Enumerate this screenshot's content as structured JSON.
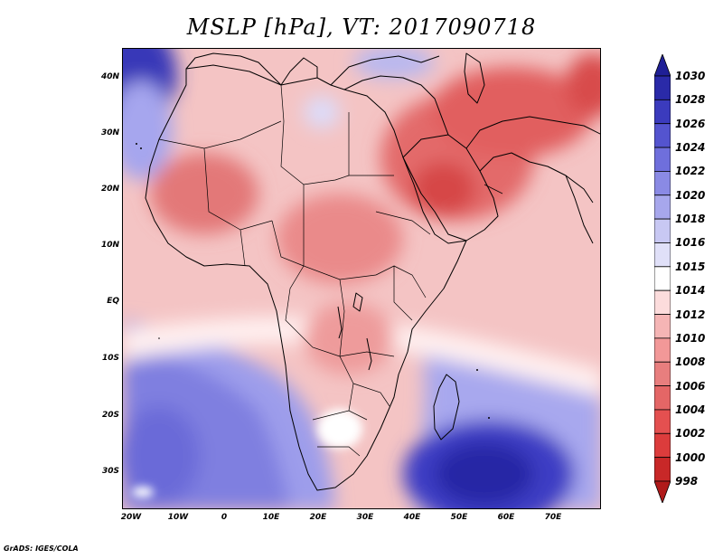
{
  "title": "MSLP [hPa], VT: 2017090718",
  "credit": "GrADS: IGES/COLA",
  "axes": {
    "x_labels": [
      "20W",
      "10W",
      "0",
      "10E",
      "20E",
      "30E",
      "40E",
      "50E",
      "60E",
      "70E"
    ],
    "y_labels": [
      "40N",
      "30N",
      "20N",
      "10N",
      "EQ",
      "10S",
      "20S",
      "30S"
    ]
  },
  "colorbar": {
    "levels": [
      "998",
      "1000",
      "1002",
      "1004",
      "1006",
      "1008",
      "1010",
      "1012",
      "1014",
      "1015",
      "1016",
      "1018",
      "1020",
      "1022",
      "1024",
      "1026",
      "1028",
      "1030"
    ],
    "colors": [
      "#b01a1a",
      "#c82828",
      "#dc3c3c",
      "#e45050",
      "#e46666",
      "#e87e7e",
      "#f29898",
      "#f5b5b5",
      "#fcdcdc",
      "#ffffff",
      "#e0e0f8",
      "#c8c8f3",
      "#a7a7ec",
      "#8a8ae4",
      "#6f6fdc",
      "#5454cf",
      "#3b3bbd",
      "#2a2aa8",
      "#1f1f96"
    ]
  },
  "field": {
    "units": "hPa",
    "valid_time": "2017090718",
    "extent": {
      "lon_min": -23,
      "lon_max": 80,
      "lat_min": -37,
      "lat_max": 45
    }
  }
}
